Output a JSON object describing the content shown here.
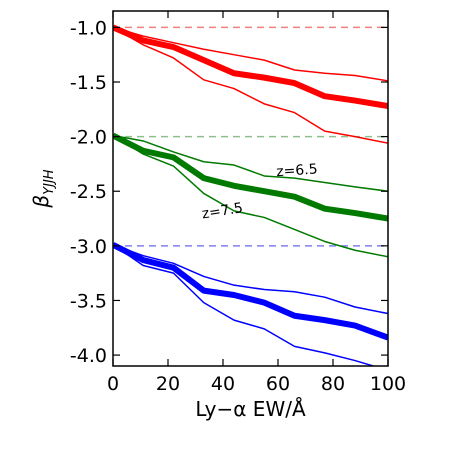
{
  "chart_data": {
    "type": "line",
    "title": "",
    "xlabel": "Ly−α EW/Å",
    "ylabel_main": "β",
    "ylabel_sub": "YJJH",
    "xlim": [
      0,
      100
    ],
    "ylim": [
      -4.1,
      -0.85
    ],
    "xticks": [
      0,
      20,
      40,
      60,
      80,
      100
    ],
    "xtick_labels": [
      "0",
      "20",
      "40",
      "60",
      "80",
      "100"
    ],
    "yticks": [
      -1.0,
      -1.5,
      -2.0,
      -2.5,
      -3.0,
      -3.5,
      -4.0
    ],
    "ytick_labels": [
      "-1.0",
      "-1.5",
      "-2.0",
      "-2.5",
      "-3.0",
      "-3.5",
      "-4.0"
    ],
    "grid": false,
    "annotations": [
      {
        "text": "z=6.5",
        "x": 67,
        "y": -2.35,
        "rotation": -4
      },
      {
        "text": "z=7.5",
        "x": 40,
        "y": -2.72,
        "rotation": -9
      }
    ],
    "reference_lines": [
      {
        "y": -1.0,
        "color": "#f08080"
      },
      {
        "y": -2.0,
        "color": "#8fbf8f"
      },
      {
        "y": -3.0,
        "color": "#8080f0"
      }
    ],
    "series": [
      {
        "color": "#ff0000",
        "width": 6,
        "x": [
          0,
          11,
          22,
          33,
          44,
          55,
          66,
          77,
          88,
          100
        ],
        "y": [
          -1.0,
          -1.12,
          -1.18,
          -1.3,
          -1.42,
          -1.46,
          -1.51,
          -1.63,
          -1.67,
          -1.72
        ]
      },
      {
        "color": "#ff0000",
        "width": 1.5,
        "x": [
          0,
          11,
          22,
          33,
          44,
          55,
          66,
          77,
          88,
          100
        ],
        "y": [
          -1.0,
          -1.08,
          -1.14,
          -1.2,
          -1.25,
          -1.3,
          -1.39,
          -1.42,
          -1.44,
          -1.49
        ]
      },
      {
        "color": "#ff0000",
        "width": 1.5,
        "x": [
          0,
          11,
          22,
          33,
          44,
          55,
          66,
          77,
          88,
          100
        ],
        "y": [
          -1.0,
          -1.16,
          -1.28,
          -1.48,
          -1.56,
          -1.7,
          -1.78,
          -1.95,
          -2.0,
          -2.06
        ]
      },
      {
        "color": "#007a00",
        "width": 6,
        "x": [
          0,
          11,
          22,
          33,
          44,
          55,
          66,
          77,
          88,
          100
        ],
        "y": [
          -1.99,
          -2.13,
          -2.19,
          -2.38,
          -2.45,
          -2.5,
          -2.55,
          -2.66,
          -2.7,
          -2.75
        ]
      },
      {
        "color": "#007a00",
        "width": 1.5,
        "x": [
          0,
          11,
          22,
          33,
          44,
          55,
          66,
          77,
          88,
          100
        ],
        "y": [
          -1.99,
          -2.04,
          -2.14,
          -2.23,
          -2.26,
          -2.36,
          -2.38,
          -2.42,
          -2.46,
          -2.5
        ]
      },
      {
        "color": "#007a00",
        "width": 1.5,
        "x": [
          0,
          11,
          22,
          33,
          44,
          55,
          66,
          77,
          88,
          100
        ],
        "y": [
          -1.99,
          -2.16,
          -2.27,
          -2.52,
          -2.68,
          -2.74,
          -2.85,
          -2.96,
          -3.04,
          -3.1
        ]
      },
      {
        "color": "#0000ff",
        "width": 6,
        "x": [
          0,
          11,
          22,
          33,
          44,
          55,
          66,
          77,
          88,
          100
        ],
        "y": [
          -2.99,
          -3.13,
          -3.2,
          -3.41,
          -3.45,
          -3.52,
          -3.64,
          -3.68,
          -3.73,
          -3.84
        ]
      },
      {
        "color": "#0000ff",
        "width": 1.5,
        "x": [
          0,
          11,
          22,
          33,
          44,
          55,
          66,
          77,
          88,
          100
        ],
        "y": [
          -2.99,
          -3.09,
          -3.16,
          -3.28,
          -3.36,
          -3.4,
          -3.42,
          -3.47,
          -3.56,
          -3.62
        ]
      },
      {
        "color": "#0000ff",
        "width": 1.5,
        "x": [
          0,
          11,
          22,
          33,
          44,
          55,
          66,
          77,
          88,
          100
        ],
        "y": [
          -2.99,
          -3.18,
          -3.25,
          -3.52,
          -3.68,
          -3.76,
          -3.92,
          -3.98,
          -4.05,
          -4.14
        ]
      }
    ]
  }
}
